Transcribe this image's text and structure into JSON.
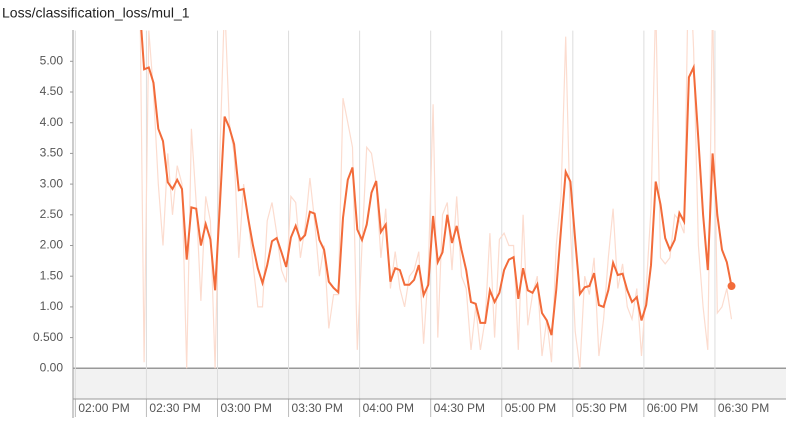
{
  "chart_data": {
    "type": "line",
    "title": "Loss/classification_loss/mul_1",
    "x": [
      867,
      869,
      871,
      873,
      875,
      877,
      879,
      881,
      883,
      885,
      887,
      889,
      891,
      893,
      895,
      897,
      899,
      901,
      903,
      905,
      907,
      909,
      911,
      913,
      915,
      917,
      919,
      921,
      923,
      925,
      927,
      929,
      931,
      933,
      935,
      937,
      939,
      941,
      943,
      945,
      947,
      949,
      951,
      953,
      955,
      957,
      959,
      961,
      963,
      965,
      967,
      969,
      971,
      973,
      975,
      977,
      979,
      981,
      983,
      985,
      987,
      989,
      991,
      993,
      995,
      997,
      999,
      1001,
      1003,
      1005,
      1007,
      1009,
      1011,
      1013,
      1015,
      1017,
      1019,
      1021,
      1023,
      1025,
      1027,
      1029,
      1031,
      1033,
      1035,
      1037,
      1039,
      1041,
      1043,
      1045,
      1047,
      1049,
      1051,
      1053,
      1055,
      1057,
      1059,
      1061,
      1063,
      1065,
      1067,
      1069,
      1071,
      1073,
      1075,
      1077,
      1079,
      1081,
      1083,
      1085,
      1087,
      1089,
      1091,
      1093,
      1095,
      1097,
      1099,
      1101,
      1103,
      1105,
      1107,
      1109,
      1111,
      1113,
      1115,
      1117
    ],
    "series": [
      {
        "color": "#fcdccf",
        "values": [
          7,
          0.1,
          5.5,
          4.5,
          3.0,
          2.0,
          3.5,
          2.5,
          3.3,
          3.0,
          0.0,
          3.9,
          2.7,
          1.1,
          2.8,
          2.4,
          0.0,
          3.5,
          6,
          4.0,
          3.5,
          1.8,
          3.0,
          2.4,
          1.7,
          1.0,
          1.0,
          2.4,
          2.7,
          2.2,
          1.6,
          1.4,
          2.8,
          2.7,
          1.8,
          2.3,
          3.1,
          2.4,
          1.5,
          2.0,
          0.65,
          1.2,
          1.2,
          4.4,
          4.0,
          3.6,
          0.3,
          2.0,
          3.6,
          3.5,
          3.0,
          1.8,
          2.6,
          1.3,
          1.9,
          1.3,
          1.0,
          1.5,
          1.6,
          1.9,
          0.4,
          1.6,
          4.3,
          0.5,
          2.5,
          2.7,
          1.6,
          2.8,
          1.5,
          1.3,
          0.3,
          1.0,
          0.3,
          0.8,
          2.2,
          0.5,
          2.1,
          2.2,
          2.0,
          2.0,
          0.3,
          2.5,
          0.7,
          1.2,
          1.5,
          0.2,
          0.8,
          0.1,
          2.0,
          2.8,
          5.4,
          2.3,
          0.6,
          0.0,
          1.5,
          1.2,
          1.8,
          0.2,
          0.8,
          1.8,
          2.6,
          1.3,
          1.7,
          1.0,
          0.8,
          1.3,
          0.2,
          1.3,
          2.6,
          6,
          1.8,
          1.7,
          1.8,
          2.5,
          2.4,
          2.2,
          7,
          5.2,
          2.0,
          1.0,
          0.3,
          6,
          0.9,
          1.0,
          1.3,
          0.8
        ]
      },
      {
        "color": "#f26b3a",
        "values": [
          6.0,
          4.87,
          4.9,
          4.65,
          3.9,
          3.7,
          3.03,
          2.92,
          3.07,
          2.92,
          1.77,
          2.62,
          2.6,
          2.0,
          2.35,
          2.1,
          1.27,
          2.67,
          4.1,
          3.92,
          3.65,
          2.9,
          2.92,
          2.43,
          2.0,
          1.63,
          1.39,
          1.68,
          2.07,
          2.12,
          1.89,
          1.65,
          2.13,
          2.32,
          2.09,
          2.17,
          2.55,
          2.52,
          2.09,
          1.93,
          1.41,
          1.31,
          1.24,
          2.45,
          3.07,
          3.27,
          2.26,
          2.09,
          2.34,
          2.86,
          3.05,
          2.22,
          2.34,
          1.41,
          1.63,
          1.6,
          1.36,
          1.36,
          1.44,
          1.68,
          1.19,
          1.36,
          2.48,
          1.73,
          1.89,
          2.5,
          2.04,
          2.32,
          1.93,
          1.6,
          1.08,
          1.05,
          0.74,
          0.74,
          1.27,
          1.08,
          1.23,
          1.6,
          1.77,
          1.81,
          1.13,
          1.63,
          1.27,
          1.23,
          1.37,
          0.9,
          0.78,
          0.54,
          1.27,
          2.26,
          3.2,
          3.04,
          2.09,
          1.21,
          1.32,
          1.34,
          1.55,
          1.03,
          1.0,
          1.27,
          1.72,
          1.52,
          1.54,
          1.27,
          1.08,
          1.16,
          0.78,
          1.03,
          1.68,
          3.04,
          2.67,
          2.12,
          1.93,
          2.09,
          2.53,
          2.39,
          4.74,
          4.9,
          3.72,
          2.5,
          1.6,
          3.5,
          2.5,
          1.93,
          1.73,
          1.34
        ]
      }
    ],
    "xlim": [
      839,
      1140
    ],
    "xticks": [
      {
        "value": 840,
        "label": "02:00 PM"
      },
      {
        "value": 870,
        "label": "02:30 PM"
      },
      {
        "value": 900,
        "label": "03:00 PM"
      },
      {
        "value": 930,
        "label": "03:30 PM"
      },
      {
        "value": 960,
        "label": "04:00 PM"
      },
      {
        "value": 990,
        "label": "04:30 PM"
      },
      {
        "value": 1020,
        "label": "05:00 PM"
      },
      {
        "value": 1050,
        "label": "05:30 PM"
      },
      {
        "value": 1080,
        "label": "06:00 PM"
      },
      {
        "value": 1110,
        "label": "06:30 PM"
      }
    ],
    "ylim": [
      -0.5,
      5.5
    ],
    "yticks": [
      {
        "value": 0,
        "label": "0.00"
      },
      {
        "value": 0.5,
        "label": "0.500"
      },
      {
        "value": 1,
        "label": "1.00"
      },
      {
        "value": 1.5,
        "label": "1.50"
      },
      {
        "value": 2,
        "label": "2.00"
      },
      {
        "value": 2.5,
        "label": "2.50"
      },
      {
        "value": 3,
        "label": "3.00"
      },
      {
        "value": 3.5,
        "label": "3.50"
      },
      {
        "value": 4,
        "label": "4.00"
      },
      {
        "value": 4.5,
        "label": "4.50"
      },
      {
        "value": 5,
        "label": "5.00"
      }
    ],
    "grid": true
  }
}
